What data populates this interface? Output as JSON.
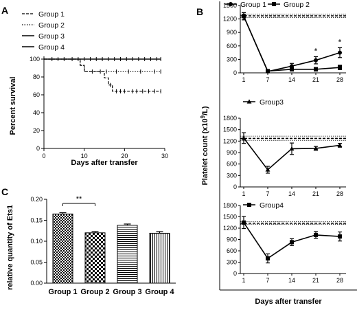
{
  "panels": {
    "a": "A",
    "b": "B",
    "c": "C"
  },
  "chart_data": [
    {
      "id": "A",
      "type": "line",
      "subtype": "kaplan-meier",
      "xlabel": "Days after transfer",
      "ylabel": "Percent survival",
      "xlim": [
        0,
        30
      ],
      "ylim": [
        0,
        100
      ],
      "xticks": [
        0,
        10,
        20,
        30
      ],
      "yticks": [
        0,
        20,
        40,
        60,
        80,
        100
      ],
      "legend": {
        "placement": "top-left",
        "entries": [
          "Group 1",
          "Group 2",
          "Group 3",
          "Group 4"
        ]
      },
      "series": [
        {
          "name": "Group 1",
          "style": "dashed",
          "steps": [
            [
              0,
              100
            ],
            [
              9,
              100
            ],
            [
              9,
              93
            ],
            [
              10,
              93
            ],
            [
              10,
              86
            ],
            [
              15,
              86
            ],
            [
              15,
              79
            ],
            [
              16,
              79
            ],
            [
              16,
              71
            ],
            [
              17,
              71
            ],
            [
              17,
              64
            ],
            [
              29,
              64
            ]
          ],
          "censor_x": [
            16.5,
            18,
            19,
            20,
            22,
            23,
            24.5,
            26,
            27.5,
            29
          ]
        },
        {
          "name": "Group 2",
          "style": "dotted",
          "steps": [
            [
              0,
              100
            ],
            [
              9,
              100
            ],
            [
              9,
              93
            ],
            [
              10,
              93
            ],
            [
              10,
              86
            ],
            [
              29,
              86
            ]
          ],
          "censor_x": [
            12,
            14,
            15.5,
            18,
            21,
            24,
            27.5,
            29
          ]
        },
        {
          "name": "Group 3",
          "style": "solid",
          "steps": [
            [
              0,
              100
            ],
            [
              29,
              100
            ]
          ],
          "censor_x": [
            2,
            3.5,
            5,
            7,
            8.5,
            10,
            11.5,
            13,
            14.5,
            16,
            17.5,
            19,
            20.5,
            22,
            23.5,
            25,
            26.5,
            28,
            29
          ]
        },
        {
          "name": "Group 4",
          "style": "solid",
          "steps": [
            [
              0,
              100
            ],
            [
              29,
              100
            ]
          ],
          "censor_x": []
        }
      ]
    },
    {
      "id": "B",
      "type": "line",
      "xlabel": "Days after transfer",
      "ylabel": "Platelet count (x10",
      "ylabel_sup": "9",
      "ylabel_tail": "/L)",
      "categories": [
        "1",
        "7",
        "14",
        "21",
        "28"
      ],
      "subplots": [
        {
          "ylim": [
            0,
            1500
          ],
          "yticks": [
            0,
            300,
            600,
            900,
            1200,
            1500
          ],
          "reference_band": {
            "mean": 1270,
            "low": 1230,
            "high": 1310
          },
          "legend": {
            "placement": "top",
            "entries": [
              "Group 1",
              "Group 2"
            ]
          },
          "series": [
            {
              "name": "Group 1",
              "marker": "circle",
              "values": [
                1260,
                30,
                150,
                280,
                450
              ],
              "errors": [
                80,
                40,
                60,
                80,
                110
              ]
            },
            {
              "name": "Group 2",
              "marker": "square",
              "values": [
                1260,
                40,
                80,
                80,
                120
              ],
              "errors": [
                80,
                30,
                40,
                40,
                50
              ]
            }
          ],
          "annotations": [
            {
              "x": "21",
              "text": "*"
            },
            {
              "x": "28",
              "text": "*"
            }
          ]
        },
        {
          "ylim": [
            0,
            1800
          ],
          "yticks": [
            0,
            300,
            600,
            900,
            1200,
            1500,
            1800
          ],
          "reference_band": {
            "mean": 1270,
            "low": 1220,
            "high": 1330
          },
          "legend": {
            "placement": "top-left",
            "entries": [
              "Group3"
            ]
          },
          "series": [
            {
              "name": "Group3",
              "marker": "triangle",
              "values": [
                1280,
                450,
                1000,
                1010,
                1090
              ],
              "errors": [
                140,
                90,
                150,
                50,
                50
              ]
            }
          ]
        },
        {
          "ylim": [
            0,
            1800
          ],
          "yticks": [
            0,
            300,
            600,
            900,
            1200,
            1500,
            1800
          ],
          "reference_band": {
            "mean": 1330,
            "low": 1300,
            "high": 1370
          },
          "legend": {
            "placement": "top-left",
            "entries": [
              "Group4"
            ]
          },
          "series": [
            {
              "name": "Group4",
              "marker": "square",
              "values": [
                1350,
                400,
                830,
                1020,
                980
              ],
              "errors": [
                160,
                120,
                90,
                90,
                120
              ]
            }
          ]
        }
      ]
    },
    {
      "id": "C",
      "type": "bar",
      "ylabel": "relative quantity of Ets1",
      "categories": [
        "Group 1",
        "Group 2",
        "Group 3",
        "Group 4"
      ],
      "values": [
        0.165,
        0.12,
        0.138,
        0.119
      ],
      "errors": [
        0.003,
        0.003,
        0.003,
        0.004
      ],
      "fills": [
        "checker-fine",
        "checker-coarse",
        "horizontal-lines",
        "vertical-lines"
      ],
      "ylim": [
        0,
        0.2
      ],
      "yticks": [
        0.0,
        0.05,
        0.1,
        0.15,
        0.2
      ],
      "ytick_labels": [
        "0.00",
        "0.05",
        "0.10",
        "0.15",
        "0.20"
      ],
      "significance": {
        "from": "Group 1",
        "to": "Group 2",
        "text": "**"
      }
    }
  ]
}
